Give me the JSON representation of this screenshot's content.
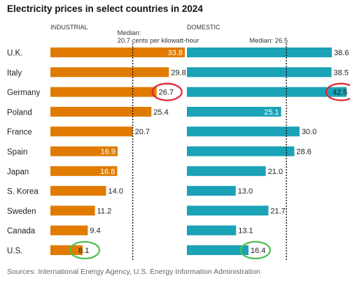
{
  "title": "Electricity prices in select countries in 2024",
  "source": "Sources: International Energy Agency, U.S. Energy Information Administration",
  "chart_data": {
    "type": "bar",
    "orientation": "horizontal",
    "categories": [
      "U.K.",
      "Italy",
      "Germany",
      "Poland",
      "France",
      "Spain",
      "Japan",
      "S. Korea",
      "Sweden",
      "Canada",
      "U.S."
    ],
    "series": [
      {
        "name": "INDUSTRIAL",
        "values": [
          33.8,
          29.8,
          26.7,
          25.4,
          20.7,
          16.9,
          16.8,
          14.0,
          11.2,
          9.4,
          8.1
        ],
        "color": "#e07b00",
        "median": 20.7,
        "median_label": [
          "Median:",
          "20.7 cents per kilowatt-hour"
        ],
        "xlim": [
          0,
          34.5
        ]
      },
      {
        "name": "DOMESTIC",
        "values": [
          38.6,
          38.5,
          42.5,
          25.1,
          30.0,
          28.6,
          21.0,
          13.0,
          21.7,
          13.1,
          16.4
        ],
        "color": "#1aa2b7",
        "median": 26.5,
        "median_label": [
          "Median: 26.5"
        ],
        "xlim": [
          0,
          42.5
        ]
      }
    ],
    "highlights": [
      {
        "series": "INDUSTRIAL",
        "category": "Germany",
        "color": "#e0242e"
      },
      {
        "series": "DOMESTIC",
        "category": "Germany",
        "color": "#e0242e"
      },
      {
        "series": "INDUSTRIAL",
        "category": "U.S.",
        "color": "#4fbf4f"
      },
      {
        "series": "DOMESTIC",
        "category": "U.S.",
        "color": "#4fbf4f"
      }
    ]
  }
}
